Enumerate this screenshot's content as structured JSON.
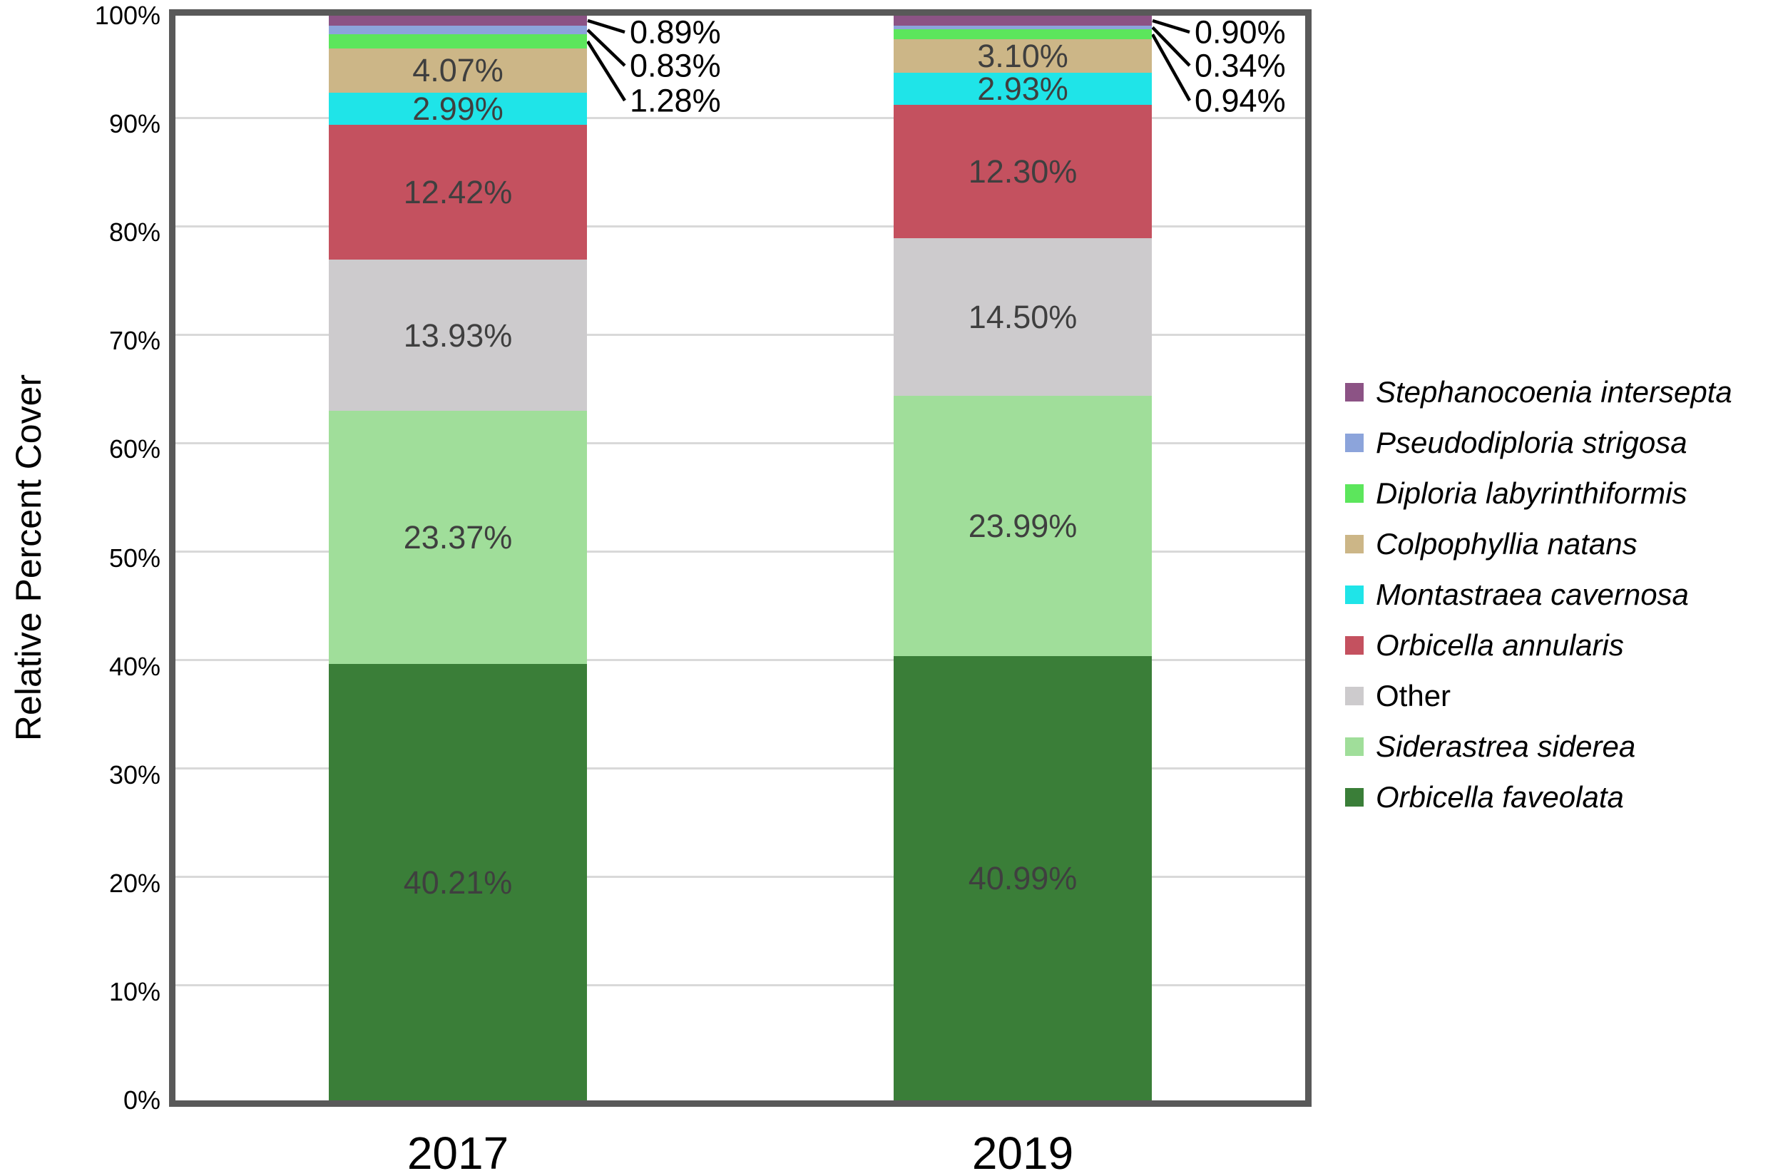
{
  "y_axis": {
    "title": "Relative Percent Cover",
    "ticks": [
      "0%",
      "10%",
      "20%",
      "30%",
      "40%",
      "50%",
      "60%",
      "70%",
      "80%",
      "90%",
      "100%"
    ]
  },
  "x_axis": {
    "categories": [
      "2017",
      "2019"
    ]
  },
  "colors": {
    "frame": "#595959",
    "gridline": "#D9D9D9",
    "inside_label": "#3F3F3F",
    "callout_label": "#000000"
  },
  "legend": [
    {
      "label": "Stephanocoenia intersepta",
      "color": "#8C5385",
      "italic": true
    },
    {
      "label": "Pseudodiploria strigosa",
      "color": "#8CA4DB",
      "italic": true
    },
    {
      "label": "Diploria labyrinthiformis",
      "color": "#5CE65C",
      "italic": true
    },
    {
      "label": "Colpophyllia natans",
      "color": "#CCB687",
      "italic": true
    },
    {
      "label": "Montastraea cavernosa",
      "color": "#1FE4E8",
      "italic": true
    },
    {
      "label": "Orbicella annularis",
      "color": "#C4515F",
      "italic": true
    },
    {
      "label": "Other",
      "color": "#CDCBCD",
      "italic": false
    },
    {
      "label": "Siderastrea siderea",
      "color": "#A0DE9A",
      "italic": true
    },
    {
      "label": "Orbicella faveolata",
      "color": "#3A7E38",
      "italic": true
    }
  ],
  "chart_data": {
    "type": "bar",
    "stacked": true,
    "title": "",
    "xlabel": "",
    "ylabel": "Relative Percent Cover",
    "ylim": [
      0,
      100
    ],
    "grid": true,
    "legend_position": "right",
    "categories": [
      "2017",
      "2019"
    ],
    "series_bottom_to_top": [
      {
        "name": "Orbicella faveolata",
        "color": "#3A7E38",
        "italic": true,
        "values": [
          40.21,
          40.99
        ],
        "labels": [
          "40.21%",
          "40.99%"
        ]
      },
      {
        "name": "Siderastrea siderea",
        "color": "#A0DE9A",
        "italic": true,
        "values": [
          23.37,
          23.99
        ],
        "labels": [
          "23.37%",
          "23.99%"
        ]
      },
      {
        "name": "Other",
        "color": "#CDCBCD",
        "italic": false,
        "values": [
          13.93,
          14.5
        ],
        "labels": [
          "13.93%",
          "14.50%"
        ]
      },
      {
        "name": "Orbicella annularis",
        "color": "#C4515F",
        "italic": true,
        "values": [
          12.42,
          12.3
        ],
        "labels": [
          "12.42%",
          "12.30%"
        ]
      },
      {
        "name": "Montastraea cavernosa",
        "color": "#1FE4E8",
        "italic": true,
        "values": [
          2.99,
          2.93
        ],
        "labels": [
          "2.99%",
          "2.93%"
        ]
      },
      {
        "name": "Colpophyllia natans",
        "color": "#CCB687",
        "italic": true,
        "values": [
          4.07,
          3.1
        ],
        "labels": [
          "4.07%",
          "3.10%"
        ]
      },
      {
        "name": "Diploria labyrinthiformis",
        "color": "#5CE65C",
        "italic": true,
        "values": [
          1.28,
          0.94
        ],
        "labels": [
          "1.28%",
          "0.94%"
        ]
      },
      {
        "name": "Pseudodiploria strigosa",
        "color": "#8CA4DB",
        "italic": true,
        "values": [
          0.83,
          0.34
        ],
        "labels": [
          "0.83%",
          "0.34%"
        ]
      },
      {
        "name": "Stephanocoenia intersepta",
        "color": "#8C5385",
        "italic": true,
        "values": [
          0.89,
          0.9
        ],
        "labels": [
          "0.89%",
          "0.90%"
        ]
      }
    ]
  }
}
